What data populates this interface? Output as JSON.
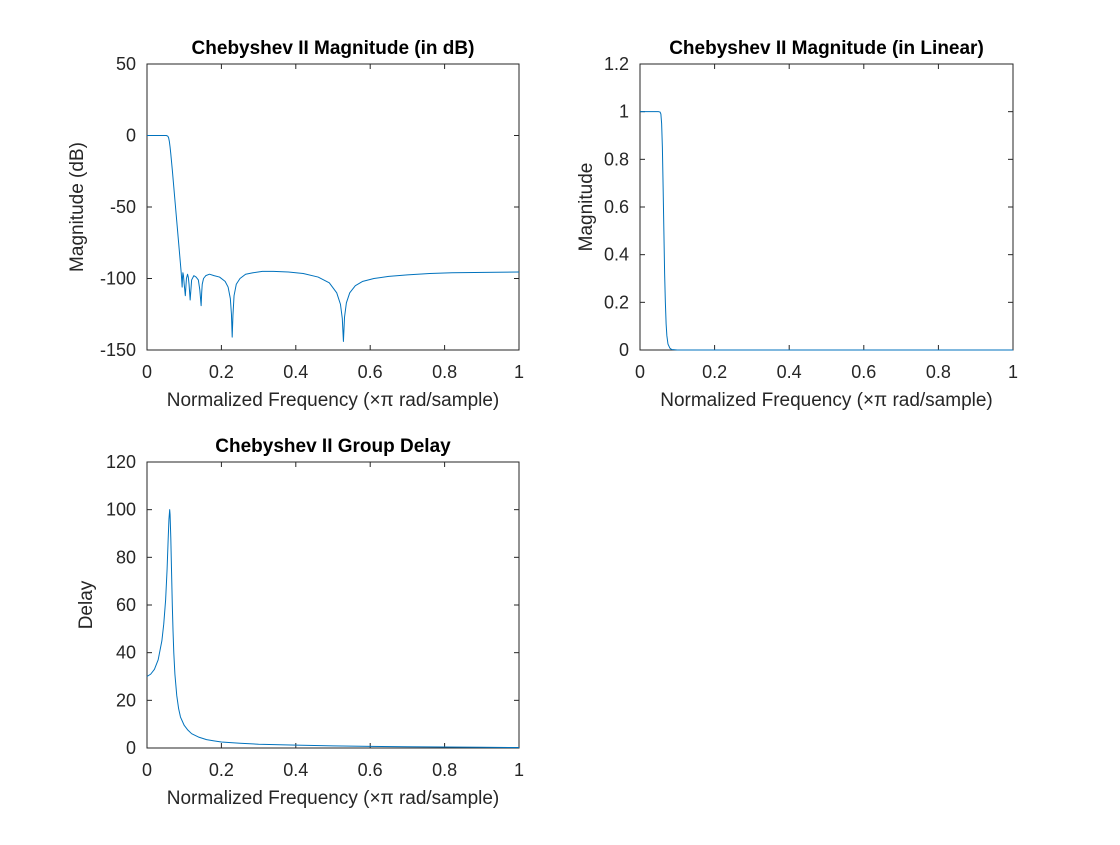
{
  "chart_data": [
    {
      "type": "line",
      "title": "Chebyshev II Magnitude (in dB)",
      "xlabel": "Normalized Frequency (×π rad/sample)",
      "ylabel": "Magnitude (dB)",
      "xlim": [
        0,
        1
      ],
      "ylim": [
        -150,
        50
      ],
      "xticks": [
        0,
        0.2,
        0.4,
        0.6,
        0.8,
        1
      ],
      "xtick_labels": [
        "0",
        "0.2",
        "0.4",
        "0.6",
        "0.8",
        "1"
      ],
      "yticks": [
        -150,
        -100,
        -50,
        0,
        50
      ],
      "ytick_labels": [
        "-150",
        "-100",
        "-50",
        "0",
        "50"
      ],
      "grid": false,
      "color": "#0072BD",
      "series": [
        {
          "x": [
            0,
            0.04,
            0.052,
            0.056,
            0.058,
            0.06,
            0.062,
            0.064,
            0.068,
            0.072,
            0.076,
            0.08,
            0.084,
            0.088,
            0.092,
            0.093,
            0.0945,
            0.0955,
            0.0965,
            0.098,
            0.1,
            0.103,
            0.106,
            0.109,
            0.111,
            0.113,
            0.116,
            0.12,
            0.126,
            0.132,
            0.138,
            0.142,
            0.1455,
            0.147,
            0.1485,
            0.152,
            0.158,
            0.168,
            0.18,
            0.195,
            0.21,
            0.218,
            0.224,
            0.227,
            0.229,
            0.231,
            0.234,
            0.24,
            0.25,
            0.265,
            0.285,
            0.31,
            0.34,
            0.38,
            0.42,
            0.46,
            0.49,
            0.51,
            0.52,
            0.525,
            0.528,
            0.531,
            0.536,
            0.545,
            0.56,
            0.58,
            0.61,
            0.65,
            0.7,
            0.76,
            0.82,
            0.88,
            0.94,
            1
          ],
          "y": [
            0,
            0,
            0,
            -0.5,
            -1.5,
            -4,
            -8,
            -13,
            -24,
            -36,
            -48,
            -60,
            -72,
            -84,
            -96,
            -100,
            -106,
            -99,
            -96,
            -98,
            -104,
            -112,
            -100,
            -97,
            -99,
            -104,
            -115,
            -101,
            -98,
            -99,
            -101,
            -108,
            -119,
            -110,
            -104,
            -100,
            -98,
            -97,
            -98,
            -99,
            -102,
            -106,
            -114,
            -125,
            -141,
            -126,
            -112,
            -104,
            -100,
            -97,
            -96,
            -95,
            -95,
            -95.5,
            -96.5,
            -99,
            -103,
            -110,
            -118,
            -128,
            -144,
            -127,
            -117,
            -110,
            -105,
            -102,
            -100,
            -98.5,
            -97.5,
            -96.5,
            -96,
            -95.8,
            -95.6,
            -95.5
          ]
        }
      ]
    },
    {
      "type": "line",
      "title": "Chebyshev II Magnitude (in Linear)",
      "xlabel": "Normalized Frequency (×π rad/sample)",
      "ylabel": "Magnitude",
      "xlim": [
        0,
        1
      ],
      "ylim": [
        0,
        1.2
      ],
      "xticks": [
        0,
        0.2,
        0.4,
        0.6,
        0.8,
        1
      ],
      "xtick_labels": [
        "0",
        "0.2",
        "0.4",
        "0.6",
        "0.8",
        "1"
      ],
      "yticks": [
        0,
        0.2,
        0.4,
        0.6,
        0.8,
        1,
        1.2
      ],
      "ytick_labels": [
        "0",
        "0.2",
        "0.4",
        "0.6",
        "0.8",
        "1",
        "1.2"
      ],
      "grid": false,
      "color": "#0072BD",
      "series": [
        {
          "x": [
            0,
            0.05,
            0.054,
            0.056,
            0.058,
            0.06,
            0.062,
            0.064,
            0.066,
            0.068,
            0.07,
            0.072,
            0.075,
            0.08,
            0.085,
            0.1,
            0.3,
            0.6,
            1
          ],
          "y": [
            1,
            1,
            0.998,
            0.99,
            0.95,
            0.85,
            0.68,
            0.5,
            0.32,
            0.2,
            0.11,
            0.06,
            0.025,
            0.008,
            0.002,
            0,
            0,
            0,
            0
          ]
        }
      ]
    },
    {
      "type": "line",
      "title": "Chebyshev II Group Delay",
      "xlabel": "Normalized Frequency (×π rad/sample)",
      "ylabel": "Delay",
      "xlim": [
        0,
        1
      ],
      "ylim": [
        0,
        120
      ],
      "xticks": [
        0,
        0.2,
        0.4,
        0.6,
        0.8,
        1
      ],
      "xtick_labels": [
        "0",
        "0.2",
        "0.4",
        "0.6",
        "0.8",
        "1"
      ],
      "yticks": [
        0,
        20,
        40,
        60,
        80,
        100,
        120
      ],
      "ytick_labels": [
        "0",
        "20",
        "40",
        "60",
        "80",
        "100",
        "120"
      ],
      "grid": false,
      "color": "#0072BD",
      "series": [
        {
          "x": [
            0,
            0.01,
            0.02,
            0.03,
            0.04,
            0.045,
            0.05,
            0.054,
            0.057,
            0.059,
            0.061,
            0.062,
            0.064,
            0.066,
            0.068,
            0.07,
            0.072,
            0.075,
            0.08,
            0.085,
            0.09,
            0.1,
            0.11,
            0.12,
            0.14,
            0.16,
            0.18,
            0.2,
            0.25,
            0.3,
            0.4,
            0.5,
            0.6,
            0.7,
            0.8,
            0.9,
            1
          ],
          "y": [
            30,
            31,
            33,
            37,
            45,
            52,
            62,
            75,
            88,
            96,
            100,
            98,
            88,
            74,
            60,
            49,
            40,
            31,
            22,
            16.5,
            13,
            9.5,
            7.5,
            6,
            4.5,
            3.5,
            3,
            2.5,
            2,
            1.6,
            1.2,
            0.9,
            0.7,
            0.5,
            0.4,
            0.3,
            0.2
          ]
        }
      ]
    }
  ]
}
